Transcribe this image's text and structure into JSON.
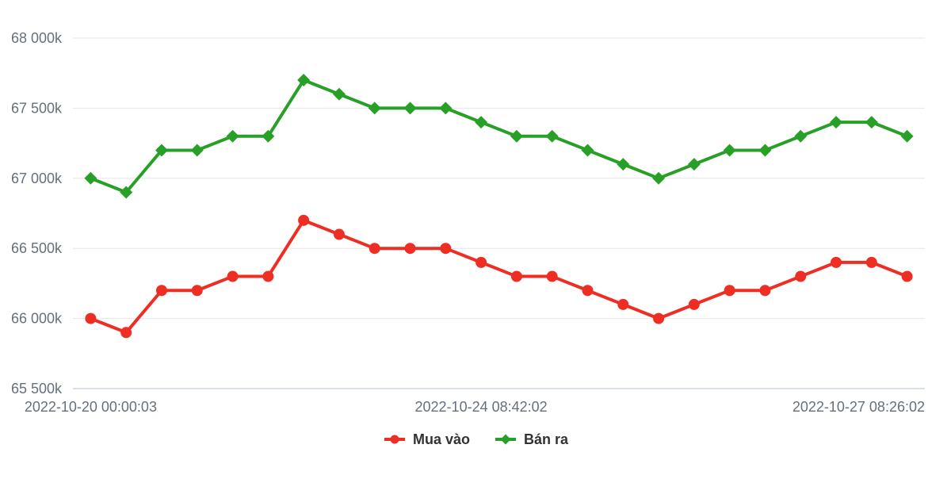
{
  "chart_data": {
    "type": "line",
    "title": "",
    "xlabel": "",
    "ylabel": "",
    "num_points": 24,
    "ylim": [
      65500,
      68000
    ],
    "grid": true,
    "legend_position": "bottom",
    "y_ticks": [
      {
        "value": 68000,
        "label": "68 000k"
      },
      {
        "value": 67500,
        "label": "67 500k"
      },
      {
        "value": 67000,
        "label": "67 000k"
      },
      {
        "value": 66500,
        "label": "66 500k"
      },
      {
        "value": 66000,
        "label": "66 000k"
      },
      {
        "value": 65500,
        "label": "65 500k"
      }
    ],
    "x_tick_labels": [
      {
        "index": 0,
        "label": "2022-10-20 00:00:03"
      },
      {
        "index": 11,
        "label": "2022-10-24 08:42:02"
      },
      {
        "index": 22,
        "label": "2022-10-27 08:26:02"
      }
    ],
    "series": [
      {
        "name": "Mua vào",
        "color": "#ee2d23",
        "marker": "circle",
        "values": [
          66000,
          65900,
          66200,
          66200,
          66300,
          66300,
          66700,
          66600,
          66500,
          66500,
          66500,
          66400,
          66300,
          66300,
          66200,
          66100,
          66000,
          66100,
          66200,
          66200,
          66300,
          66400,
          66400,
          66300
        ]
      },
      {
        "name": "Bán ra",
        "color": "#28a028",
        "marker": "diamond",
        "values": [
          67000,
          66900,
          67200,
          67200,
          67300,
          67300,
          67700,
          67600,
          67500,
          67500,
          67500,
          67400,
          67300,
          67300,
          67200,
          67100,
          67000,
          67100,
          67200,
          67200,
          67300,
          67400,
          67400,
          67300
        ]
      }
    ],
    "colors": {
      "grid": "#e6e6e6",
      "axis_line": "#ccd6eb",
      "axis_label": "#66707c",
      "legend_text": "#333333",
      "background": "#ffffff"
    }
  }
}
